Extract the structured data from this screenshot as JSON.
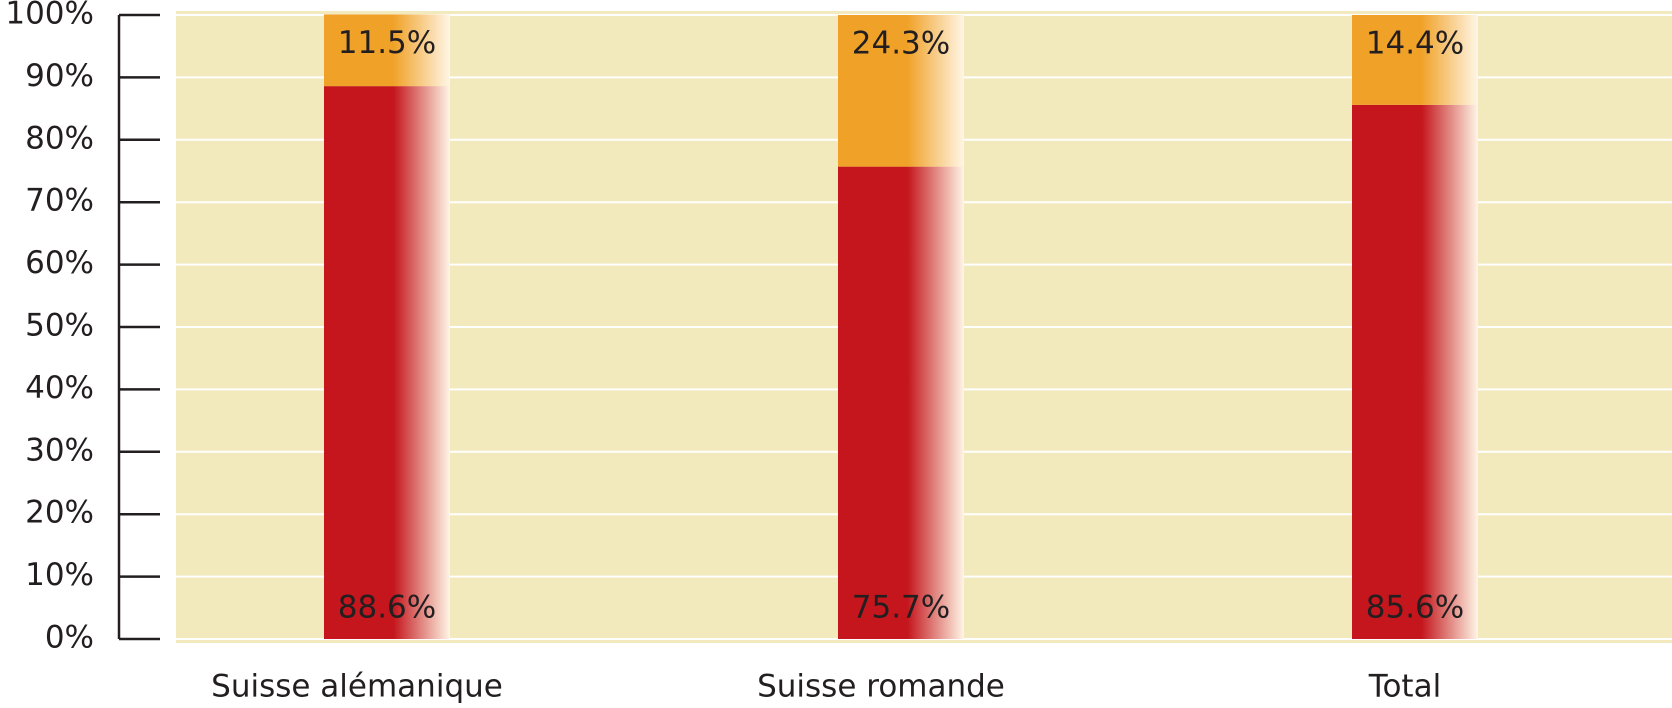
{
  "chart_data": {
    "type": "stacked_bar",
    "categories": [
      "Suisse alémanique",
      "Suisse romande",
      "Total"
    ],
    "series": [
      {
        "color": "#c4161c",
        "values": [
          88.6,
          75.7,
          85.6
        ],
        "value_labels": [
          "88.6%",
          "75.7%",
          "85.6%"
        ]
      },
      {
        "color": "#f0a228",
        "values": [
          11.5,
          24.3,
          14.4
        ],
        "value_labels": [
          "11.5%",
          "24.3%",
          "14.4%"
        ]
      }
    ],
    "ylim": [
      0,
      100
    ],
    "yticks": [
      {
        "value": 0,
        "label": "0%"
      },
      {
        "value": 10,
        "label": "10%"
      },
      {
        "value": 20,
        "label": "20%"
      },
      {
        "value": 30,
        "label": "30%"
      },
      {
        "value": 40,
        "label": "40%"
      },
      {
        "value": 50,
        "label": "50%"
      },
      {
        "value": 60,
        "label": "60%"
      },
      {
        "value": 70,
        "label": "70%"
      },
      {
        "value": 80,
        "label": "80%"
      },
      {
        "value": 90,
        "label": "90%"
      },
      {
        "value": 100,
        "label": "100%"
      }
    ],
    "grid": true
  }
}
